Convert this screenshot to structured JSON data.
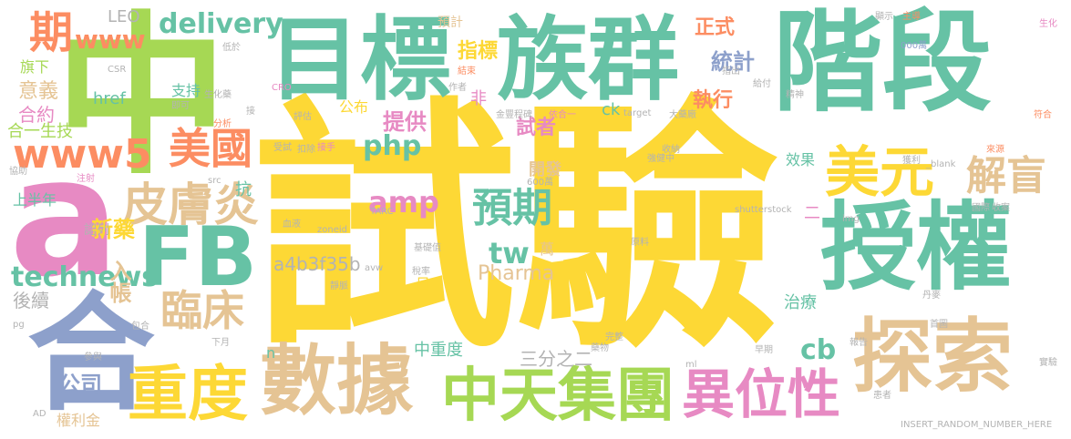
{
  "palette": {
    "yellow": "#fddc35",
    "green": "#6cc497",
    "teal": "#66c2a5",
    "lime": "#a6d854",
    "pink": "#e78ac3",
    "blue": "#8da0cb",
    "tan": "#e5c494",
    "orange": "#fc8d62",
    "grey": "#b3b3b3"
  },
  "words": [
    {
      "text": "試驗",
      "color": "#fdd835"
    },
    {
      "text": "中",
      "color": "#a6d854"
    },
    {
      "text": "階段",
      "color": "#66c2a5"
    },
    {
      "text": "a",
      "color": "#e78ac3"
    },
    {
      "text": "授權",
      "color": "#66c2a5"
    },
    {
      "text": "目標",
      "color": "#66c2a5"
    },
    {
      "text": "族群",
      "color": "#66c2a5"
    },
    {
      "text": "合",
      "color": "#8da0cb"
    },
    {
      "text": "FB",
      "color": "#66c2a5"
    },
    {
      "text": "數據",
      "color": "#e5c494"
    },
    {
      "text": "探索",
      "color": "#e5c494"
    },
    {
      "text": "重度",
      "color": "#fdd835"
    },
    {
      "text": "中天集團",
      "color": "#a6d854"
    },
    {
      "text": "異位性",
      "color": "#e78ac3"
    },
    {
      "text": "美元",
      "color": "#fdd835"
    },
    {
      "text": "皮膚炎",
      "color": "#e5c494"
    },
    {
      "text": "美國",
      "color": "#fc8d62"
    },
    {
      "text": "www5",
      "color": "#fc8d62"
    },
    {
      "text": "臨床",
      "color": "#e5c494"
    },
    {
      "text": "預期",
      "color": "#66c2a5"
    },
    {
      "text": "解盲",
      "color": "#e5c494"
    },
    {
      "text": "期",
      "color": "#fc8d62"
    },
    {
      "text": "www",
      "color": "#fc8d62"
    },
    {
      "text": "delivery",
      "color": "#66c2a5"
    },
    {
      "text": "technews",
      "color": "#66c2a5"
    },
    {
      "text": "php",
      "color": "#66c2a5"
    },
    {
      "text": "amp",
      "color": "#e78ac3"
    },
    {
      "text": "tw",
      "color": "#66c2a5"
    },
    {
      "text": "cb",
      "color": "#66c2a5"
    },
    {
      "text": "Pharma",
      "color": "#e5c494"
    },
    {
      "text": "a4b3f35b",
      "color": "#b3b3b3"
    },
    {
      "text": "LEO",
      "color": "#b3b3b3"
    },
    {
      "text": "href",
      "color": "#66c2a5"
    },
    {
      "text": "新藥",
      "color": "#fdd835"
    },
    {
      "text": "入帳",
      "color": "#e5c494"
    },
    {
      "text": "公司",
      "color": "#8da0cb"
    },
    {
      "text": "提供",
      "color": "#e78ac3"
    },
    {
      "text": "試者",
      "color": "#e78ac3"
    },
    {
      "text": "開發",
      "color": "#e5c494"
    },
    {
      "text": "正式",
      "color": "#fc8d62"
    },
    {
      "text": "統計",
      "color": "#8da0cb"
    },
    {
      "text": "指標",
      "color": "#fdd835"
    },
    {
      "text": "執行",
      "color": "#fc8d62"
    },
    {
      "text": "三分之二",
      "color": "#b3b3b3"
    },
    {
      "text": "中重度",
      "color": "#66c2a5"
    },
    {
      "text": "意義",
      "color": "#e5c494"
    },
    {
      "text": "合約",
      "color": "#e78ac3"
    },
    {
      "text": "旗下",
      "color": "#a6d854"
    },
    {
      "text": "上半年",
      "color": "#66c2a5"
    },
    {
      "text": "認列",
      "color": "#b3b3b3"
    },
    {
      "text": "後續",
      "color": "#b3b3b3"
    },
    {
      "text": "權利金",
      "color": "#e5c494"
    },
    {
      "text": "合一生技",
      "color": "#a6d854"
    },
    {
      "text": "支持",
      "color": "#66c2a5"
    },
    {
      "text": "治療",
      "color": "#66c2a5"
    },
    {
      "text": "效果",
      "color": "#66c2a5"
    },
    {
      "text": "抗",
      "color": "#66c2a5"
    },
    {
      "text": "公布",
      "color": "#fdd835"
    },
    {
      "text": "ck",
      "color": "#66c2a5"
    },
    {
      "text": "非",
      "color": "#e78ac3"
    },
    {
      "text": "萬",
      "color": "#e5c494"
    },
    {
      "text": "日",
      "color": "#fdd835"
    },
    {
      "text": "n",
      "color": "#66c2a5"
    },
    {
      "text": "二",
      "color": "#e78ac3"
    },
    {
      "text": "預計",
      "color": "#e5c494"
    },
    {
      "text": "CSR",
      "color": "#b3b3b3"
    },
    {
      "text": "CRO",
      "color": "#e78ac3"
    },
    {
      "text": "低於",
      "color": "#b3b3b3"
    },
    {
      "text": "即可",
      "color": "#b3b3b3"
    },
    {
      "text": "生化",
      "color": "#e78ac3"
    },
    {
      "text": "000萬",
      "color": "#8da0cb"
    },
    {
      "text": "顯示",
      "color": "#b3b3b3"
    },
    {
      "text": "主導",
      "color": "#fc8d62"
    },
    {
      "text": "生化藥",
      "color": "#b3b3b3"
    },
    {
      "text": "作者",
      "color": "#b3b3b3"
    },
    {
      "text": "結束",
      "color": "#fc8d62"
    },
    {
      "text": "指出",
      "color": "#b3b3b3"
    },
    {
      "text": "給付",
      "color": "#b3b3b3"
    },
    {
      "text": "精神",
      "color": "#b3b3b3"
    },
    {
      "text": "金豐程碑",
      "color": "#b3b3b3"
    },
    {
      "text": "依合一",
      "color": "#e78ac3"
    },
    {
      "text": "target",
      "color": "#b3b3b3"
    },
    {
      "text": "大藥廠",
      "color": "#b3b3b3"
    },
    {
      "text": "符合",
      "color": "#fc8d62"
    },
    {
      "text": "分析",
      "color": "#fc8d62"
    },
    {
      "text": "評估",
      "color": "#b3b3b3"
    },
    {
      "text": "接",
      "color": "#b3b3b3"
    },
    {
      "text": "受試",
      "color": "#b3b3b3"
    },
    {
      "text": "扣除",
      "color": "#b3b3b3"
    },
    {
      "text": "接手",
      "color": "#e78ac3"
    },
    {
      "text": "收納",
      "color": "#b3b3b3"
    },
    {
      "text": "獲利",
      "color": "#b3b3b3"
    },
    {
      "text": "_blank",
      "color": "#b3b3b3"
    },
    {
      "text": "來源",
      "color": "#fc8d62"
    },
    {
      "text": "國際",
      "color": "#b3b3b3"
    },
    {
      "text": "收案",
      "color": "#b3b3b3"
    },
    {
      "text": "強健中",
      "color": "#b3b3b3"
    },
    {
      "text": "600萬",
      "color": "#b3b3b3"
    },
    {
      "text": "src",
      "color": "#b3b3b3"
    },
    {
      "text": "協助",
      "color": "#b3b3b3"
    },
    {
      "text": "注射",
      "color": "#e78ac3"
    },
    {
      "text": "TARC",
      "color": "#b3b3b3"
    },
    {
      "text": "shutterstock",
      "color": "#b3b3b3"
    },
    {
      "text": "img",
      "color": "#b3b3b3"
    },
    {
      "text": "血液",
      "color": "#b3b3b3"
    },
    {
      "text": "zoneid",
      "color": "#b3b3b3"
    },
    {
      "text": "基礎值",
      "color": "#b3b3b3"
    },
    {
      "text": "原料",
      "color": "#b3b3b3"
    },
    {
      "text": "avw",
      "color": "#b3b3b3"
    },
    {
      "text": "稅率",
      "color": "#b3b3b3"
    },
    {
      "text": "靜脈",
      "color": "#b3b3b3"
    },
    {
      "text": "包合",
      "color": "#b3b3b3"
    },
    {
      "text": "完整",
      "color": "#b3b3b3"
    },
    {
      "text": "藥物",
      "color": "#b3b3b3"
    },
    {
      "text": "首圖",
      "color": "#b3b3b3"
    },
    {
      "text": "下月",
      "color": "#b3b3b3"
    },
    {
      "text": "早期",
      "color": "#b3b3b3"
    },
    {
      "text": "參與",
      "color": "#b3b3b3"
    },
    {
      "text": "報告",
      "color": "#b3b3b3"
    },
    {
      "text": "ml",
      "color": "#b3b3b3"
    },
    {
      "text": "患者",
      "color": "#b3b3b3"
    },
    {
      "text": "INSERT_RANDOM_NUMBER_HERE",
      "color": "#b3b3b3"
    },
    {
      "text": "AD",
      "color": "#b3b3b3"
    },
    {
      "text": "pg",
      "color": "#b3b3b3"
    },
    {
      "text": "丹麥",
      "color": "#b3b3b3"
    },
    {
      "text": "實驗",
      "color": "#b3b3b3"
    }
  ]
}
